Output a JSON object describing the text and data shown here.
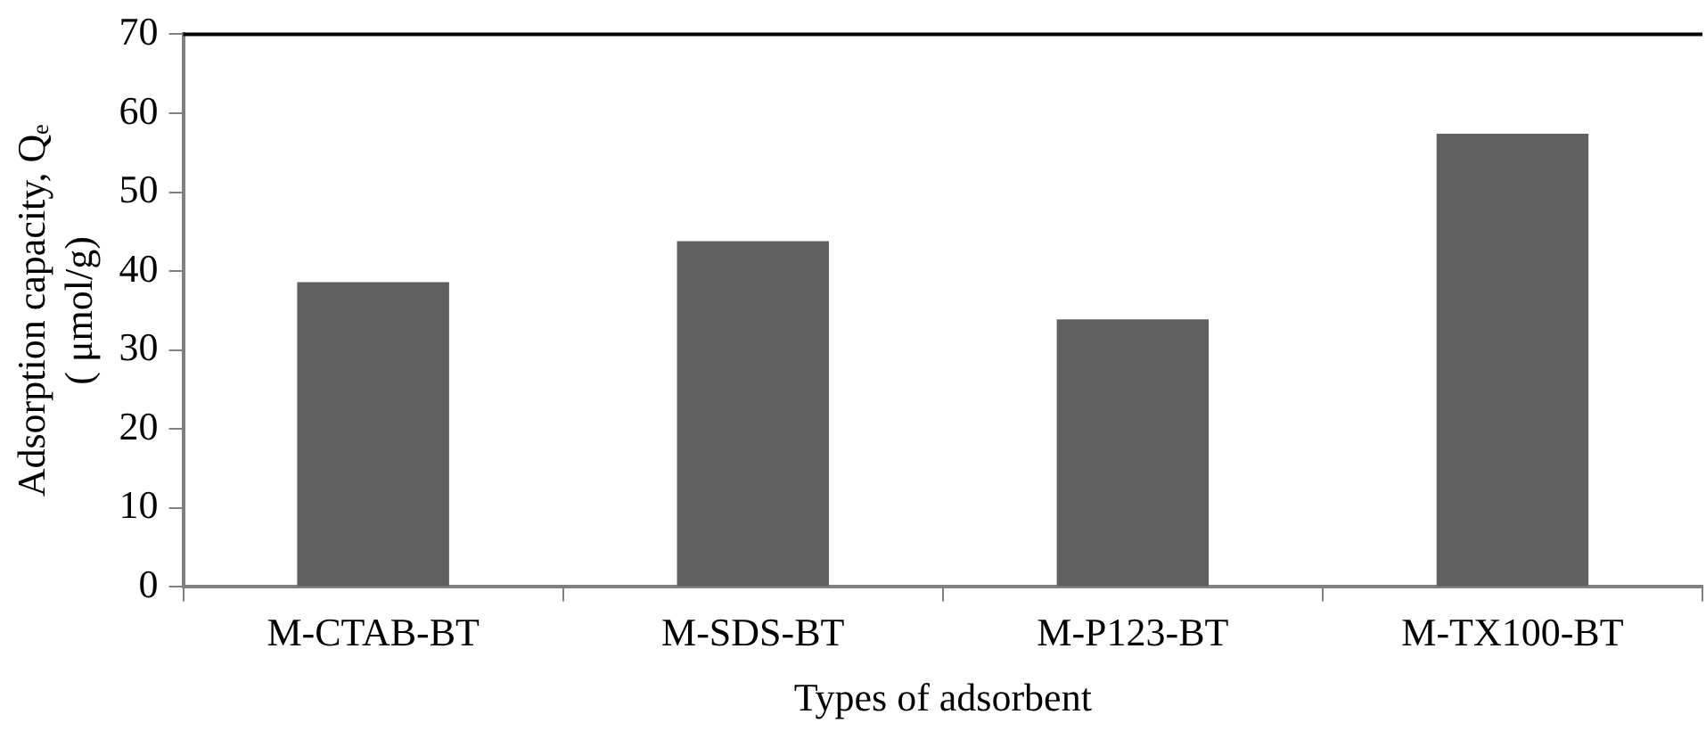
{
  "chart_data": {
    "type": "bar",
    "xlabel": "Types of adsorbent",
    "ylabel": "Adsorption capacity, Qₑ\n( μmol/g)",
    "categories": [
      "M-CTAB-BT",
      "M-SDS-BT",
      "M-P123-BT",
      "M-TX100-BT"
    ],
    "values": [
      38.6,
      43.8,
      33.9,
      57.4
    ],
    "color": "#606060",
    "ylim": [
      0,
      70
    ],
    "yticks": [
      0,
      10,
      20,
      30,
      40,
      50,
      60,
      70
    ],
    "grid": false,
    "legend": false
  }
}
